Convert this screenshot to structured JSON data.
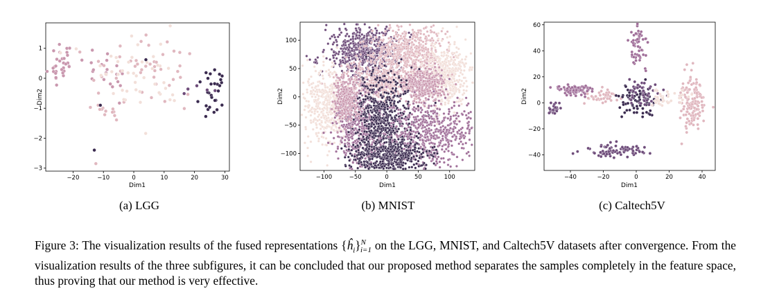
{
  "palette": [
    "#f2dfd9",
    "#e0b7bf",
    "#c997ae",
    "#a06f99",
    "#6e4c7a",
    "#3a2a4f"
  ],
  "chart_data": [
    {
      "type": "scatter",
      "caption": "(a) LGG",
      "xlabel": "Dim1",
      "ylabel": "Dim2",
      "xlim": [
        -29,
        31.5
      ],
      "ylim": [
        -3.1,
        1.85
      ],
      "xticks": [
        -20,
        -10,
        0,
        10,
        20,
        30
      ],
      "yticks": [
        -3,
        -2,
        -1,
        0,
        1
      ],
      "xtick_labels": [
        "−20",
        "−10",
        "0",
        "10",
        "20",
        "30"
      ],
      "ytick_labels": [
        "−3",
        "−2",
        "−1",
        "0",
        "1"
      ],
      "grid": false,
      "clusters": [
        {
          "color_index": 2,
          "n": 30,
          "center": [
            -24,
            0.55
          ],
          "spread": [
            1.8,
            0.45
          ],
          "seed": 11
        },
        {
          "color_index": 2,
          "n": 22,
          "center": [
            -8,
            0.25
          ],
          "spread": [
            5,
            0.35
          ],
          "seed": 12
        },
        {
          "color_index": 1,
          "n": 45,
          "center": [
            3,
            0.3
          ],
          "spread": [
            9,
            0.55
          ],
          "seed": 13
        },
        {
          "color_index": 0,
          "n": 45,
          "center": [
            5,
            0.1
          ],
          "spread": [
            10,
            0.6
          ],
          "seed": 14
        },
        {
          "color_index": 1,
          "n": 12,
          "center": [
            -8,
            -1.05
          ],
          "spread": [
            2,
            0.15
          ],
          "seed": 15
        },
        {
          "color_index": 5,
          "n": 28,
          "center": [
            26,
            -0.55
          ],
          "spread": [
            2.3,
            0.45
          ],
          "seed": 16
        },
        {
          "color_index": 4,
          "n": 5,
          "center": [
            22,
            -0.3
          ],
          "spread": [
            3,
            0.25
          ],
          "seed": 17
        }
      ],
      "points": [
        {
          "x": -13,
          "y": -2.4,
          "color_index": 5
        },
        {
          "x": -12.5,
          "y": -2.85,
          "color_index": 1
        },
        {
          "x": 4,
          "y": 0.62,
          "color_index": 5
        },
        {
          "x": -11,
          "y": -0.9,
          "color_index": 5
        },
        {
          "x": 12,
          "y": 1.75,
          "color_index": 0
        }
      ]
    },
    {
      "type": "scatter",
      "caption": "(b) MNIST",
      "xlabel": "Dim1",
      "ylabel": "Dim2",
      "xlim": [
        -138,
        140
      ],
      "ylim": [
        -130,
        132
      ],
      "xticks": [
        -100,
        -50,
        0,
        50,
        100
      ],
      "yticks": [
        -100,
        -50,
        0,
        50,
        100
      ],
      "xtick_labels": [
        "−100",
        "−50",
        "0",
        "50",
        "100"
      ],
      "ytick_labels": [
        "−100",
        "−50",
        "0",
        "50",
        "100"
      ],
      "grid": false,
      "clusters": [
        {
          "color_index": 4,
          "n": 600,
          "center": [
            -35,
            80
          ],
          "spread": [
            30,
            22
          ],
          "seed": 21
        },
        {
          "color_index": 1,
          "n": 550,
          "center": [
            35,
            80
          ],
          "spread": [
            28,
            22
          ],
          "seed": 22
        },
        {
          "color_index": 0,
          "n": 500,
          "center": [
            90,
            35
          ],
          "spread": [
            20,
            28
          ],
          "seed": 23
        },
        {
          "color_index": 1,
          "n": 500,
          "center": [
            -10,
            25
          ],
          "spread": [
            35,
            16
          ],
          "seed": 24
        },
        {
          "color_index": 2,
          "n": 350,
          "center": [
            58,
            20
          ],
          "spread": [
            16,
            14
          ],
          "seed": 25
        },
        {
          "color_index": 0,
          "n": 450,
          "center": [
            -95,
            -15
          ],
          "spread": [
            18,
            35
          ],
          "seed": 26
        },
        {
          "color_index": 3,
          "n": 450,
          "center": [
            -45,
            -60
          ],
          "spread": [
            20,
            40
          ],
          "seed": 27
        },
        {
          "color_index": 5,
          "n": 600,
          "center": [
            -5,
            -40
          ],
          "spread": [
            22,
            40
          ],
          "seed": 28
        },
        {
          "color_index": 3,
          "n": 550,
          "center": [
            70,
            -65
          ],
          "spread": [
            35,
            30
          ],
          "seed": 29
        },
        {
          "color_index": 5,
          "n": 450,
          "center": [
            5,
            -105
          ],
          "spread": [
            30,
            16
          ],
          "seed": 30
        },
        {
          "color_index": 2,
          "n": 300,
          "center": [
            -65,
            -5
          ],
          "spread": [
            10,
            20
          ],
          "seed": 31
        }
      ],
      "points": []
    },
    {
      "type": "scatter",
      "caption": "(c) Caltech5V",
      "xlabel": "Dim1",
      "ylabel": "Dim2",
      "xlim": [
        -56,
        48
      ],
      "ylim": [
        -52,
        62
      ],
      "xticks": [
        -40,
        -20,
        0,
        20,
        40
      ],
      "yticks": [
        -40,
        -20,
        0,
        20,
        40,
        60
      ],
      "xtick_labels": [
        "−40",
        "−20",
        "0",
        "20",
        "40"
      ],
      "ytick_labels": [
        "−40",
        "−20",
        "0",
        "20",
        "40",
        "60"
      ],
      "grid": false,
      "clusters": [
        {
          "color_index": 3,
          "n": 60,
          "center": [
            2,
            45
          ],
          "spread": [
            3,
            8
          ],
          "seed": 41
        },
        {
          "color_index": 3,
          "n": 80,
          "center": [
            -38,
            10
          ],
          "spread": [
            6,
            2
          ],
          "seed": 42
        },
        {
          "color_index": 1,
          "n": 40,
          "center": [
            -22,
            5
          ],
          "spread": [
            6,
            3
          ],
          "seed": 43
        },
        {
          "color_index": 4,
          "n": 80,
          "center": [
            -13,
            -37
          ],
          "spread": [
            10,
            3
          ],
          "seed": 44
        },
        {
          "color_index": 5,
          "n": 70,
          "center": [
            0,
            2
          ],
          "spread": [
            6,
            6
          ],
          "seed": 45
        },
        {
          "color_index": 4,
          "n": 50,
          "center": [
            4,
            8
          ],
          "spread": [
            5,
            5
          ],
          "seed": 46
        },
        {
          "color_index": 1,
          "n": 140,
          "center": [
            34,
            0
          ],
          "spread": [
            4,
            10
          ],
          "seed": 47
        },
        {
          "color_index": 0,
          "n": 40,
          "center": [
            18,
            4
          ],
          "spread": [
            6,
            3
          ],
          "seed": 48
        },
        {
          "color_index": 4,
          "n": 25,
          "center": [
            -50,
            -5
          ],
          "spread": [
            2,
            2
          ],
          "seed": 49
        }
      ],
      "points": []
    }
  ],
  "caption": {
    "label": "Figure 3:",
    "text_before": "The visualization results of the fused representations",
    "text_after": "on the LGG, MNIST, and Caltech5V datasets after convergence. From the visualization results of the three subfigures, it can be concluded that our proposed method separates the samples completely in the feature space, thus proving that our method is very effective.",
    "math": {
      "base": "ĥ",
      "sub": "i",
      "sup": "N",
      "range": "i=1"
    }
  }
}
